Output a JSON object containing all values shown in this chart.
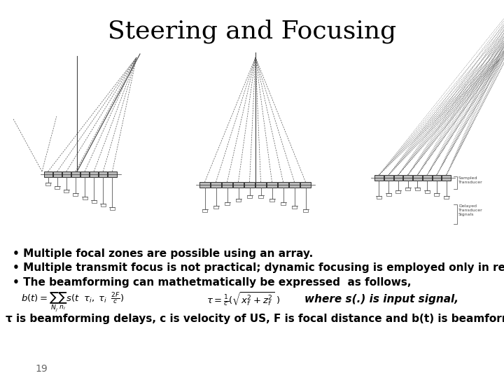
{
  "title": "Steering and Focusing",
  "title_fontsize": 26,
  "title_fontfamily": "DejaVu Serif",
  "bullet1": "Multiple focal zones are possible using an array.",
  "bullet2": "Multiple transmit focus is not practical; dynamic focusing is employed only in receive mo",
  "bullet3": "The beamforming can mathetmatically be expressed  as follows,",
  "last_line": "τ is beamforming delays, c is velocity of US, F is focal distance and b(t) is beamformed si",
  "page_num": "19",
  "bg_color": "#ffffff",
  "text_color": "#000000",
  "bullet_fontsize": 11,
  "page_fontsize": 10,
  "diag_line_color": "#555555",
  "diag_array_face": "#bbbbbb",
  "diag_array_edge": "#333333"
}
